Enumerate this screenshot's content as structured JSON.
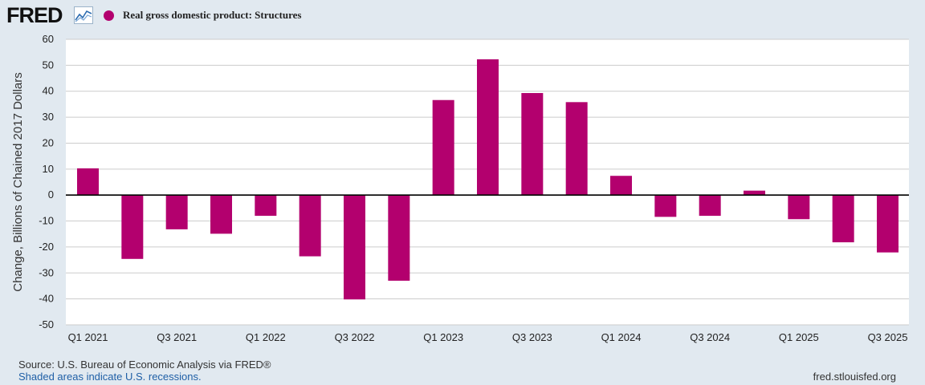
{
  "header": {
    "logo_text": "FRED",
    "logo_icon": "fred-chart-icon",
    "legend_label": "Real gross domestic product: Structures"
  },
  "footer": {
    "source": "Source: U.S. Bureau of Economic Analysis via FRED®",
    "note": "Shaded areas indicate U.S. recessions.",
    "url": "fred.stlouisfed.org"
  },
  "colors": {
    "bar": "#b3006e",
    "background": "#e1e9f0",
    "plot": "#ffffff",
    "grid": "#cccccc"
  },
  "chart_data": {
    "type": "bar",
    "ylabel": "Change, Billions of Chained 2017 Dollars",
    "ylim": [
      -50,
      60
    ],
    "yticks": [
      60,
      50,
      40,
      30,
      20,
      10,
      0,
      -10,
      -20,
      -30,
      -40,
      -50
    ],
    "grid": true,
    "legend_position": "top-left",
    "categories": [
      "Q1 2021",
      "Q2 2021",
      "Q3 2021",
      "Q4 2021",
      "Q1 2022",
      "Q2 2022",
      "Q3 2022",
      "Q4 2022",
      "Q1 2023",
      "Q2 2023",
      "Q3 2023",
      "Q4 2023",
      "Q1 2024",
      "Q2 2024",
      "Q3 2024",
      "Q4 2024",
      "Q1 2025",
      "Q2 2025",
      "Q3 2025"
    ],
    "xtick_labels": [
      "Q1 2021",
      "",
      "Q3 2021",
      "",
      "Q1 2022",
      "",
      "Q3 2022",
      "",
      "Q1 2023",
      "",
      "Q3 2023",
      "",
      "Q1 2024",
      "",
      "Q3 2024",
      "",
      "Q1 2025",
      "",
      "Q3 2025"
    ],
    "series": [
      {
        "name": "Real gross domestic product: Structures",
        "values": [
          10.3,
          -24.6,
          -13.2,
          -14.9,
          -8.0,
          -23.6,
          -40.2,
          -33.0,
          36.6,
          52.3,
          39.3,
          35.8,
          7.4,
          -8.4,
          -8.0,
          1.7,
          -9.3,
          -18.2,
          -22.1
        ]
      }
    ]
  }
}
